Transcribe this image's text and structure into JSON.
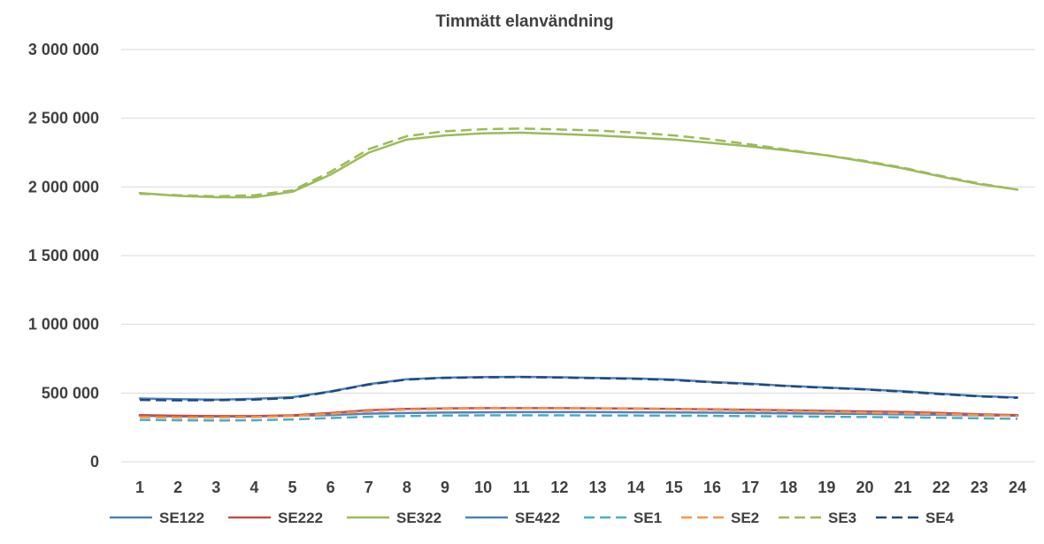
{
  "chart_data": {
    "type": "line",
    "title": "Timmätt elanvändning",
    "xlabel": "",
    "ylabel": "",
    "x": [
      1,
      2,
      3,
      4,
      5,
      6,
      7,
      8,
      9,
      10,
      11,
      12,
      13,
      14,
      15,
      16,
      17,
      18,
      19,
      20,
      21,
      22,
      23,
      24
    ],
    "x_tick_labels": [
      "1",
      "2",
      "3",
      "4",
      "5",
      "6",
      "7",
      "8",
      "9",
      "10",
      "11",
      "12",
      "13",
      "14",
      "15",
      "16",
      "17",
      "18",
      "19",
      "20",
      "21",
      "22",
      "23",
      "24"
    ],
    "ylim": [
      0,
      3000000
    ],
    "y_ticks": [
      0,
      500000,
      1000000,
      1500000,
      2000000,
      2500000,
      3000000
    ],
    "y_tick_labels": [
      "0",
      "500 000",
      "1 000 000",
      "1 500 000",
      "2 000 000",
      "2 500 000",
      "3 000 000"
    ],
    "grid": true,
    "legend_position": "bottom",
    "series": [
      {
        "name": "SE122",
        "color": "#4f81bd",
        "dash": false,
        "values": [
          335000,
          330000,
          330000,
          330000,
          335000,
          340000,
          350000,
          355000,
          358000,
          360000,
          361000,
          361000,
          361000,
          360000,
          359000,
          357000,
          355000,
          352000,
          350000,
          348000,
          345000,
          342000,
          338000,
          335000
        ]
      },
      {
        "name": "SE222",
        "color": "#c0504d",
        "dash": false,
        "values": [
          340000,
          335000,
          332000,
          332000,
          338000,
          355000,
          375000,
          385000,
          388000,
          390000,
          390000,
          390000,
          389000,
          387000,
          385000,
          382000,
          378000,
          374000,
          370000,
          366000,
          362000,
          355000,
          345000,
          340000
        ]
      },
      {
        "name": "SE322",
        "color": "#9bbb59",
        "dash": false,
        "values": [
          1955000,
          1935000,
          1925000,
          1925000,
          1965000,
          2090000,
          2250000,
          2345000,
          2375000,
          2390000,
          2395000,
          2385000,
          2375000,
          2360000,
          2345000,
          2320000,
          2295000,
          2265000,
          2230000,
          2185000,
          2135000,
          2075000,
          2020000,
          1980000
        ]
      },
      {
        "name": "SE422",
        "color": "#4f81bd",
        "dash": false,
        "values": [
          460000,
          455000,
          452000,
          458000,
          470000,
          512000,
          565000,
          600000,
          612000,
          616000,
          618000,
          615000,
          610000,
          606000,
          598000,
          580000,
          568000,
          552000,
          540000,
          528000,
          513000,
          495000,
          478000,
          468000
        ]
      },
      {
        "name": "SE1",
        "color": "#4bacc6",
        "dash": true,
        "values": [
          305000,
          302000,
          300000,
          302000,
          308000,
          318000,
          328000,
          333000,
          336000,
          338000,
          338000,
          338000,
          337000,
          336000,
          335000,
          334000,
          332000,
          330000,
          328000,
          326000,
          323000,
          320000,
          316000,
          312000
        ]
      },
      {
        "name": "SE2",
        "color": "#f79646",
        "dash": true,
        "values": [
          325000,
          322000,
          322000,
          325000,
          332000,
          348000,
          368000,
          380000,
          385000,
          388000,
          389000,
          388000,
          387000,
          385000,
          382000,
          378000,
          373000,
          368000,
          363000,
          358000,
          353000,
          347000,
          340000,
          334000
        ]
      },
      {
        "name": "SE3",
        "color": "#9bbb59",
        "dash": true,
        "values": [
          1950000,
          1940000,
          1932000,
          1940000,
          1975000,
          2110000,
          2275000,
          2370000,
          2405000,
          2420000,
          2425000,
          2418000,
          2410000,
          2395000,
          2375000,
          2345000,
          2310000,
          2270000,
          2230000,
          2190000,
          2140000,
          2080000,
          2025000,
          1980000
        ]
      },
      {
        "name": "SE4",
        "color": "#1f497d",
        "dash": true,
        "values": [
          450000,
          447000,
          448000,
          452000,
          465000,
          510000,
          562000,
          598000,
          610000,
          614000,
          616000,
          613000,
          608000,
          603000,
          595000,
          578000,
          565000,
          550000,
          538000,
          526000,
          510000,
          492000,
          476000,
          465000
        ]
      }
    ]
  }
}
